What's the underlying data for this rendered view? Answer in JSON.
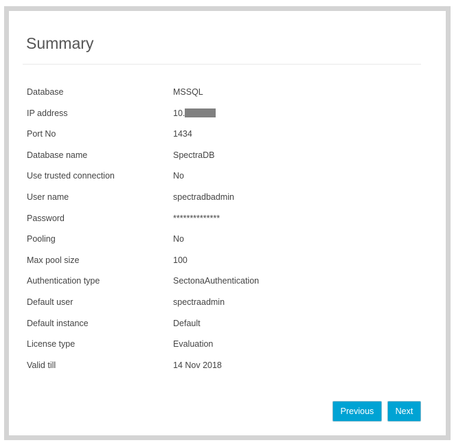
{
  "title": "Summary",
  "rows": [
    {
      "label": "Database",
      "value": "MSSQL"
    },
    {
      "label": "IP address",
      "value": "10."
    },
    {
      "label": "Port No",
      "value": "1434"
    },
    {
      "label": "Database name",
      "value": "SpectraDB"
    },
    {
      "label": "Use trusted connection",
      "value": "No"
    },
    {
      "label": "User name",
      "value": "spectradbadmin"
    },
    {
      "label": "Password",
      "value": "**************"
    },
    {
      "label": "Pooling",
      "value": "No"
    },
    {
      "label": "Max pool size",
      "value": "100"
    },
    {
      "label": "Authentication type",
      "value": "SectonaAuthentication"
    },
    {
      "label": "Default user",
      "value": "spectraadmin"
    },
    {
      "label": "Default instance",
      "value": "Default"
    },
    {
      "label": "License type",
      "value": "Evaluation"
    },
    {
      "label": "Valid till",
      "value": "14 Nov 2018"
    }
  ],
  "buttons": {
    "previous": "Previous",
    "next": "Next"
  },
  "colors": {
    "accent": "#00a3d4",
    "frame": "#d4d4d4",
    "redaction": "#808080"
  }
}
